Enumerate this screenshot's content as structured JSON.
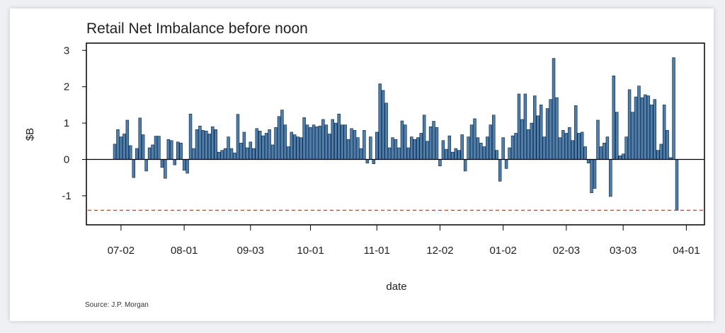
{
  "chart_data": {
    "type": "bar",
    "title": "Retail Net Imbalance before noon",
    "xlabel": "date",
    "ylabel": "$B",
    "source": "Source: J.P. Morgan",
    "yticks": [
      3,
      2,
      1,
      0,
      -1
    ],
    "ylim": [
      -1.8,
      3.2
    ],
    "xticks": [
      "07-02",
      "08-01",
      "09-03",
      "10-01",
      "11-01",
      "12-02",
      "01-02",
      "02-03",
      "03-03",
      "04-01"
    ],
    "xtick_index": [
      2,
      22,
      43,
      62,
      83,
      103,
      123,
      143,
      161,
      181
    ],
    "reference_line": {
      "value": -1.4,
      "color": "#e53935",
      "style": "dashed"
    },
    "bar_color": "#4a7fb0",
    "grid": false,
    "values": [
      0.42,
      0.82,
      0.62,
      0.7,
      1.08,
      0.38,
      -0.5,
      0.3,
      1.14,
      0.68,
      -0.32,
      0.32,
      0.4,
      0.64,
      0.64,
      -0.22,
      -0.52,
      0.55,
      0.52,
      -0.15,
      0.48,
      0.45,
      -0.3,
      -0.38,
      1.25,
      0.3,
      0.82,
      0.92,
      0.8,
      0.78,
      0.7,
      0.9,
      0.82,
      0.2,
      0.25,
      0.3,
      0.62,
      0.3,
      0.18,
      1.24,
      0.45,
      0.75,
      0.32,
      0.48,
      0.3,
      0.85,
      0.78,
      0.65,
      0.72,
      0.82,
      0.4,
      0.88,
      1.18,
      1.36,
      0.95,
      0.35,
      0.75,
      0.68,
      0.62,
      0.6,
      1.15,
      0.95,
      0.88,
      0.95,
      0.9,
      0.92,
      1.1,
      0.95,
      0.7,
      1.1,
      1.0,
      1.25,
      0.95,
      0.95,
      0.55,
      0.85,
      0.8,
      0.6,
      0.3,
      0.8,
      -0.1,
      0.62,
      -0.12,
      0.75,
      2.08,
      1.9,
      1.55,
      0.32,
      0.6,
      0.55,
      0.32,
      1.06,
      0.95,
      0.32,
      0.62,
      0.55,
      0.6,
      0.72,
      1.22,
      0.5,
      0.9,
      1.05,
      0.88,
      -0.18,
      0.52,
      0.28,
      0.65,
      0.2,
      0.3,
      0.25,
      0.68,
      -0.32,
      0.62,
      0.95,
      1.12,
      0.6,
      0.45,
      0.35,
      0.62,
      0.95,
      1.22,
      0.25,
      -0.6,
      0.6,
      -0.25,
      0.32,
      0.65,
      0.72,
      1.8,
      1.1,
      1.8,
      0.82,
      1.0,
      1.75,
      1.2,
      1.5,
      0.62,
      1.4,
      1.65,
      2.78,
      1.7,
      0.6,
      0.8,
      0.72,
      0.88,
      0.52,
      1.48,
      0.72,
      0.75,
      0.35,
      -0.1,
      -0.92,
      -0.8,
      1.08,
      0.35,
      0.45,
      0.62,
      -1.02,
      2.3,
      1.3,
      0.1,
      0.15,
      0.62,
      1.92,
      1.3,
      1.72,
      2.02,
      1.7,
      1.78,
      1.75,
      1.5,
      1.65,
      0.25,
      0.42,
      1.5,
      0.8,
      0.05,
      2.8,
      -1.4
    ]
  }
}
